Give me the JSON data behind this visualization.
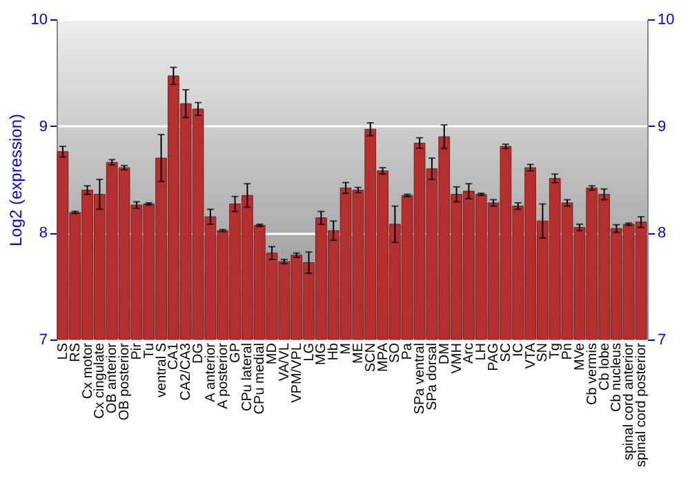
{
  "chart_data": {
    "type": "bar",
    "ylabel": "Log2 (expression)",
    "categories": [
      "LS",
      "RS",
      "Cx motor",
      "Cx cingulate",
      "OB anterior",
      "OB posterior",
      "Pir",
      "Tu",
      "ventral S",
      "CA1",
      "CA2/CA3",
      "DG",
      "A anterior",
      "A posterior",
      "GP",
      "CPu lateral",
      "CPu medial",
      "MD",
      "VA/VL",
      "VPM/VPL",
      "LG",
      "MG",
      "Hb",
      "M",
      "ME",
      "SCN",
      "MPA",
      "SO",
      "Pa",
      "SPa ventral",
      "SPa dorsal",
      "DM",
      "VMH",
      "Arc",
      "LH",
      "PAG",
      "SC",
      "IC",
      "VTA",
      "SN",
      "Tg",
      "Pn",
      "MVe",
      "Cb vermis",
      "Cb lobe",
      "Cb nucleus",
      "spinal cord anterior",
      "spinal cord posterior"
    ],
    "values": [
      8.76,
      8.19,
      8.4,
      8.36,
      8.66,
      8.61,
      8.26,
      8.27,
      8.7,
      9.47,
      9.21,
      9.16,
      8.15,
      8.02,
      8.27,
      8.35,
      8.07,
      7.81,
      7.73,
      7.79,
      7.72,
      8.14,
      8.02,
      8.42,
      8.4,
      8.97,
      8.58,
      8.08,
      8.35,
      8.84,
      8.6,
      8.9,
      8.36,
      8.39,
      8.36,
      8.28,
      8.81,
      8.25,
      8.61,
      8.11,
      8.51,
      8.28,
      8.05,
      8.42,
      8.36,
      8.04,
      8.08,
      8.1
    ],
    "errors": [
      0.05,
      0.01,
      0.04,
      0.14,
      0.025,
      0.02,
      0.03,
      0.01,
      0.22,
      0.08,
      0.13,
      0.06,
      0.07,
      0.01,
      0.07,
      0.11,
      0.01,
      0.06,
      0.02,
      0.02,
      0.1,
      0.06,
      0.09,
      0.05,
      0.025,
      0.06,
      0.03,
      0.17,
      0.01,
      0.05,
      0.1,
      0.11,
      0.07,
      0.07,
      0.01,
      0.03,
      0.02,
      0.03,
      0.03,
      0.16,
      0.04,
      0.03,
      0.03,
      0.02,
      0.05,
      0.035,
      0.01,
      0.05
    ],
    "color": "#b52f2f",
    "ylim": [
      7,
      10
    ],
    "yticks": [
      7,
      8,
      9,
      10
    ],
    "y2lim": [
      7,
      10
    ],
    "y2ticks": [
      7,
      8,
      9,
      10
    ],
    "grid": "y"
  }
}
